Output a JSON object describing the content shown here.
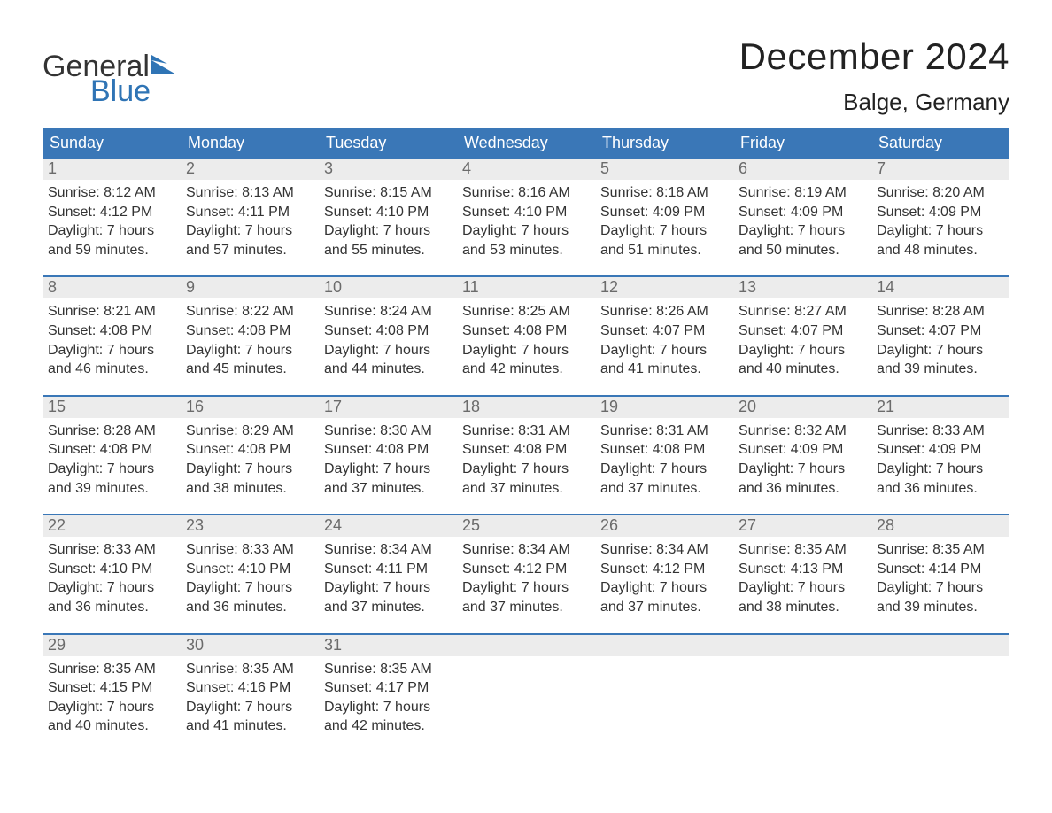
{
  "logo": {
    "general": "General",
    "blue": "Blue",
    "flag_color": "#2f74b5"
  },
  "title": "December 2024",
  "location": "Balge, Germany",
  "colors": {
    "header_bg": "#3a77b7",
    "header_text": "#ffffff",
    "daynum_bg": "#ececec",
    "daynum_text": "#6b6b6b",
    "body_text": "#333333",
    "rule": "#3a77b7",
    "page_bg": "#ffffff"
  },
  "fonts": {
    "title_pt": 42,
    "location_pt": 26,
    "dow_pt": 18,
    "daynum_pt": 18,
    "body_pt": 16
  },
  "days_of_week": [
    "Sunday",
    "Monday",
    "Tuesday",
    "Wednesday",
    "Thursday",
    "Friday",
    "Saturday"
  ],
  "labels": {
    "sunrise": "Sunrise",
    "sunset": "Sunset",
    "daylight": "Daylight"
  },
  "weeks": [
    [
      {
        "n": "1",
        "sunrise": "8:12 AM",
        "sunset": "4:12 PM",
        "daylight": "7 hours and 59 minutes."
      },
      {
        "n": "2",
        "sunrise": "8:13 AM",
        "sunset": "4:11 PM",
        "daylight": "7 hours and 57 minutes."
      },
      {
        "n": "3",
        "sunrise": "8:15 AM",
        "sunset": "4:10 PM",
        "daylight": "7 hours and 55 minutes."
      },
      {
        "n": "4",
        "sunrise": "8:16 AM",
        "sunset": "4:10 PM",
        "daylight": "7 hours and 53 minutes."
      },
      {
        "n": "5",
        "sunrise": "8:18 AM",
        "sunset": "4:09 PM",
        "daylight": "7 hours and 51 minutes."
      },
      {
        "n": "6",
        "sunrise": "8:19 AM",
        "sunset": "4:09 PM",
        "daylight": "7 hours and 50 minutes."
      },
      {
        "n": "7",
        "sunrise": "8:20 AM",
        "sunset": "4:09 PM",
        "daylight": "7 hours and 48 minutes."
      }
    ],
    [
      {
        "n": "8",
        "sunrise": "8:21 AM",
        "sunset": "4:08 PM",
        "daylight": "7 hours and 46 minutes."
      },
      {
        "n": "9",
        "sunrise": "8:22 AM",
        "sunset": "4:08 PM",
        "daylight": "7 hours and 45 minutes."
      },
      {
        "n": "10",
        "sunrise": "8:24 AM",
        "sunset": "4:08 PM",
        "daylight": "7 hours and 44 minutes."
      },
      {
        "n": "11",
        "sunrise": "8:25 AM",
        "sunset": "4:08 PM",
        "daylight": "7 hours and 42 minutes."
      },
      {
        "n": "12",
        "sunrise": "8:26 AM",
        "sunset": "4:07 PM",
        "daylight": "7 hours and 41 minutes."
      },
      {
        "n": "13",
        "sunrise": "8:27 AM",
        "sunset": "4:07 PM",
        "daylight": "7 hours and 40 minutes."
      },
      {
        "n": "14",
        "sunrise": "8:28 AM",
        "sunset": "4:07 PM",
        "daylight": "7 hours and 39 minutes."
      }
    ],
    [
      {
        "n": "15",
        "sunrise": "8:28 AM",
        "sunset": "4:08 PM",
        "daylight": "7 hours and 39 minutes."
      },
      {
        "n": "16",
        "sunrise": "8:29 AM",
        "sunset": "4:08 PM",
        "daylight": "7 hours and 38 minutes."
      },
      {
        "n": "17",
        "sunrise": "8:30 AM",
        "sunset": "4:08 PM",
        "daylight": "7 hours and 37 minutes."
      },
      {
        "n": "18",
        "sunrise": "8:31 AM",
        "sunset": "4:08 PM",
        "daylight": "7 hours and 37 minutes."
      },
      {
        "n": "19",
        "sunrise": "8:31 AM",
        "sunset": "4:08 PM",
        "daylight": "7 hours and 37 minutes."
      },
      {
        "n": "20",
        "sunrise": "8:32 AM",
        "sunset": "4:09 PM",
        "daylight": "7 hours and 36 minutes."
      },
      {
        "n": "21",
        "sunrise": "8:33 AM",
        "sunset": "4:09 PM",
        "daylight": "7 hours and 36 minutes."
      }
    ],
    [
      {
        "n": "22",
        "sunrise": "8:33 AM",
        "sunset": "4:10 PM",
        "daylight": "7 hours and 36 minutes."
      },
      {
        "n": "23",
        "sunrise": "8:33 AM",
        "sunset": "4:10 PM",
        "daylight": "7 hours and 36 minutes."
      },
      {
        "n": "24",
        "sunrise": "8:34 AM",
        "sunset": "4:11 PM",
        "daylight": "7 hours and 37 minutes."
      },
      {
        "n": "25",
        "sunrise": "8:34 AM",
        "sunset": "4:12 PM",
        "daylight": "7 hours and 37 minutes."
      },
      {
        "n": "26",
        "sunrise": "8:34 AM",
        "sunset": "4:12 PM",
        "daylight": "7 hours and 37 minutes."
      },
      {
        "n": "27",
        "sunrise": "8:35 AM",
        "sunset": "4:13 PM",
        "daylight": "7 hours and 38 minutes."
      },
      {
        "n": "28",
        "sunrise": "8:35 AM",
        "sunset": "4:14 PM",
        "daylight": "7 hours and 39 minutes."
      }
    ],
    [
      {
        "n": "29",
        "sunrise": "8:35 AM",
        "sunset": "4:15 PM",
        "daylight": "7 hours and 40 minutes."
      },
      {
        "n": "30",
        "sunrise": "8:35 AM",
        "sunset": "4:16 PM",
        "daylight": "7 hours and 41 minutes."
      },
      {
        "n": "31",
        "sunrise": "8:35 AM",
        "sunset": "4:17 PM",
        "daylight": "7 hours and 42 minutes."
      },
      null,
      null,
      null,
      null
    ]
  ]
}
